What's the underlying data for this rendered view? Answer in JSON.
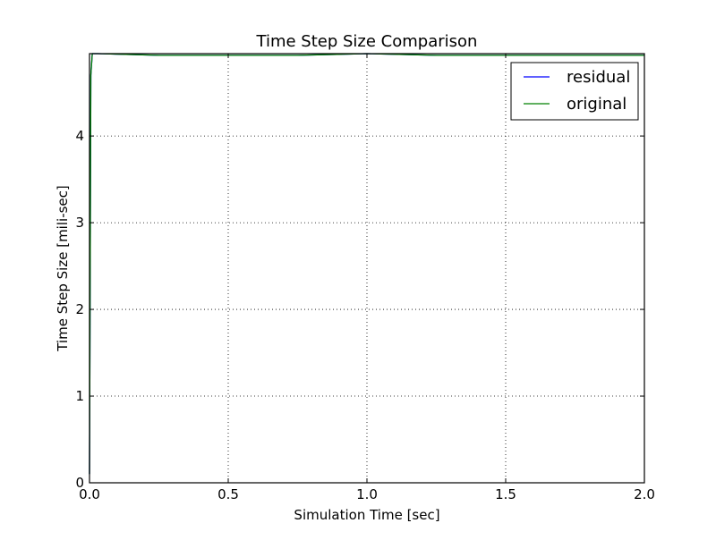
{
  "chart_data": {
    "type": "line",
    "title": "Time Step Size Comparison",
    "xlabel": "Simulation Time [sec]",
    "ylabel": "Time Step Size [mili-sec]",
    "xlim": [
      0.0,
      2.0
    ],
    "ylim": [
      0,
      4.95
    ],
    "xticks": [
      0.0,
      0.5,
      1.0,
      1.5,
      2.0
    ],
    "xtick_labels": [
      "0.0",
      "0.5",
      "1.0",
      "1.5",
      "2.0"
    ],
    "yticks": [
      0,
      1,
      2,
      3,
      4
    ],
    "ytick_labels": [
      "0",
      "1",
      "2",
      "3",
      "4"
    ],
    "grid": true,
    "legend_position": "top-right",
    "series": [
      {
        "name": "residual",
        "color": "#0000ff",
        "x": [
          0.0,
          0.005,
          0.01,
          0.03,
          0.25,
          0.5,
          0.75,
          1.0,
          1.25,
          1.5,
          1.75,
          2.0
        ],
        "y": [
          0.1,
          4.7,
          4.95,
          4.95,
          4.93,
          4.93,
          4.93,
          4.95,
          4.93,
          4.93,
          4.93,
          4.93
        ]
      },
      {
        "name": "original",
        "color": "#008000",
        "x": [
          0.0,
          0.005,
          0.01,
          0.03,
          0.25,
          0.5,
          0.75,
          1.0,
          1.25,
          1.5,
          1.75,
          2.0
        ],
        "y": [
          0.1,
          4.7,
          4.95,
          4.95,
          4.93,
          4.93,
          4.93,
          4.95,
          4.93,
          4.93,
          4.93,
          4.93
        ]
      }
    ]
  }
}
